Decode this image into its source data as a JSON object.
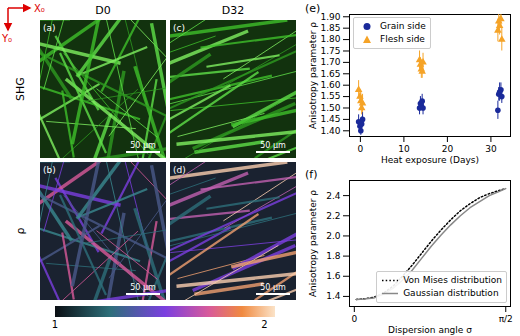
{
  "axes_arrows": {
    "x": "X₀",
    "y": "Y₀"
  },
  "column_titles": [
    "D0",
    "D32"
  ],
  "row_titles": [
    "SHG",
    "ρ"
  ],
  "image_panels": [
    {
      "label": "(a)",
      "column": "D0",
      "row": "SHG",
      "scale_bar": "50 µm"
    },
    {
      "label": "(b)",
      "column": "D0",
      "row": "ρ",
      "scale_bar": "50 µm"
    },
    {
      "label": "(c)",
      "column": "D32",
      "row": "SHG",
      "scale_bar": "50 µm"
    },
    {
      "label": "(d)",
      "column": "D32",
      "row": "ρ",
      "scale_bar": "50 µm"
    }
  ],
  "colorbar": {
    "range": [
      1,
      2.05
    ],
    "ticks": [
      1,
      2
    ]
  },
  "chart_data": [
    {
      "type": "scatter",
      "title": "(e)",
      "x_label": "Heat exposure (Days)",
      "y_label": "Anisotropy parameter ρ",
      "xlim": [
        -2.5,
        34.5
      ],
      "xticks": [
        0,
        10,
        20,
        30
      ],
      "ylim": [
        1.375,
        1.91
      ],
      "yticks": [
        {
          "value": 1.4,
          "label": "1.40"
        },
        {
          "value": 1.45,
          "label": "1.45"
        },
        {
          "value": 1.5,
          "label": "1.50"
        },
        {
          "value": 1.55,
          "label": "1.55"
        },
        {
          "value": 1.6,
          "label": "1.60"
        },
        {
          "value": 1.65,
          "label": "1.65"
        },
        {
          "value": 1.7,
          "label": "1.70"
        },
        {
          "value": 1.75,
          "label": "1.75"
        },
        {
          "value": 1.8,
          "label": "1.80"
        },
        {
          "value": 1.85,
          "label": "1.85"
        },
        {
          "value": 1.9,
          "label": "1.90"
        }
      ],
      "legend": "upper left",
      "grid": false,
      "series": [
        {
          "name": "Grain side",
          "color": "#1a2a9a",
          "marker": "circle",
          "x": [
            -0.4,
            -0.1,
            0.1,
            0.3,
            0.5,
            13.6,
            13.8,
            14,
            14.2,
            14.4,
            31.6,
            31.8,
            32,
            32.3,
            32.5
          ],
          "values": [
            1.44,
            1.42,
            1.4,
            1.43,
            1.45,
            1.5,
            1.52,
            1.51,
            1.53,
            1.5,
            1.49,
            1.56,
            1.57,
            1.58,
            1.55
          ],
          "errors": [
            0.03,
            0.02,
            0.02,
            0.03,
            0.03,
            0.03,
            0.03,
            0.02,
            0.03,
            0.03,
            0.04,
            0.03,
            0.04,
            0.03,
            0.03
          ]
        },
        {
          "name": "Flesh side",
          "color": "#f5a327",
          "marker": "triangle",
          "x": [
            -0.4,
            -0.1,
            0.1,
            0.3,
            0.5,
            13.6,
            13.8,
            14,
            14.2,
            14.4,
            31.6,
            31.8,
            32,
            32.3,
            32.5
          ],
          "values": [
            1.58,
            1.55,
            1.53,
            1.5,
            1.52,
            1.71,
            1.69,
            1.67,
            1.66,
            1.7,
            1.84,
            1.88,
            1.86,
            1.89,
            1.8
          ],
          "errors": [
            0.04,
            0.03,
            0.04,
            0.03,
            0.04,
            0.04,
            0.03,
            0.04,
            0.03,
            0.04,
            0.05,
            0.04,
            0.04,
            0.04,
            0.05
          ]
        }
      ]
    },
    {
      "type": "line",
      "title": "(f)",
      "x_label": "Dispersion angle σ",
      "y_label": "Anisotropy parameter ρ",
      "xlim": [
        -0.05,
        1.62
      ],
      "xticks": [
        0,
        {
          "value": 1.5708,
          "label": "π/2"
        }
      ],
      "ylim": [
        1.3,
        2.55
      ],
      "yticks": [
        1.4,
        1.6,
        1.8,
        {
          "value": 2,
          "label": "2.0"
        },
        2.2,
        2.4
      ],
      "legend": "lower right",
      "grid": false,
      "x": [
        0.02,
        0.1,
        0.2,
        0.3,
        0.4,
        0.5,
        0.6,
        0.7,
        0.8,
        0.9,
        1.0,
        1.1,
        1.2,
        1.3,
        1.4,
        1.5,
        1.57
      ],
      "series": [
        {
          "name": "Von Mises distribution",
          "color": "#000000",
          "line_style": "dotted",
          "values": [
            1.37,
            1.376,
            1.39,
            1.43,
            1.5,
            1.6,
            1.71,
            1.83,
            1.95,
            2.06,
            2.16,
            2.25,
            2.32,
            2.38,
            2.42,
            2.45,
            2.47
          ]
        },
        {
          "name": "Gaussian distribution",
          "color": "#888888",
          "line_style": "solid",
          "values": [
            1.37,
            1.375,
            1.385,
            1.42,
            1.48,
            1.56,
            1.66,
            1.78,
            1.9,
            2.01,
            2.11,
            2.2,
            2.28,
            2.34,
            2.4,
            2.44,
            2.47
          ]
        }
      ]
    }
  ]
}
